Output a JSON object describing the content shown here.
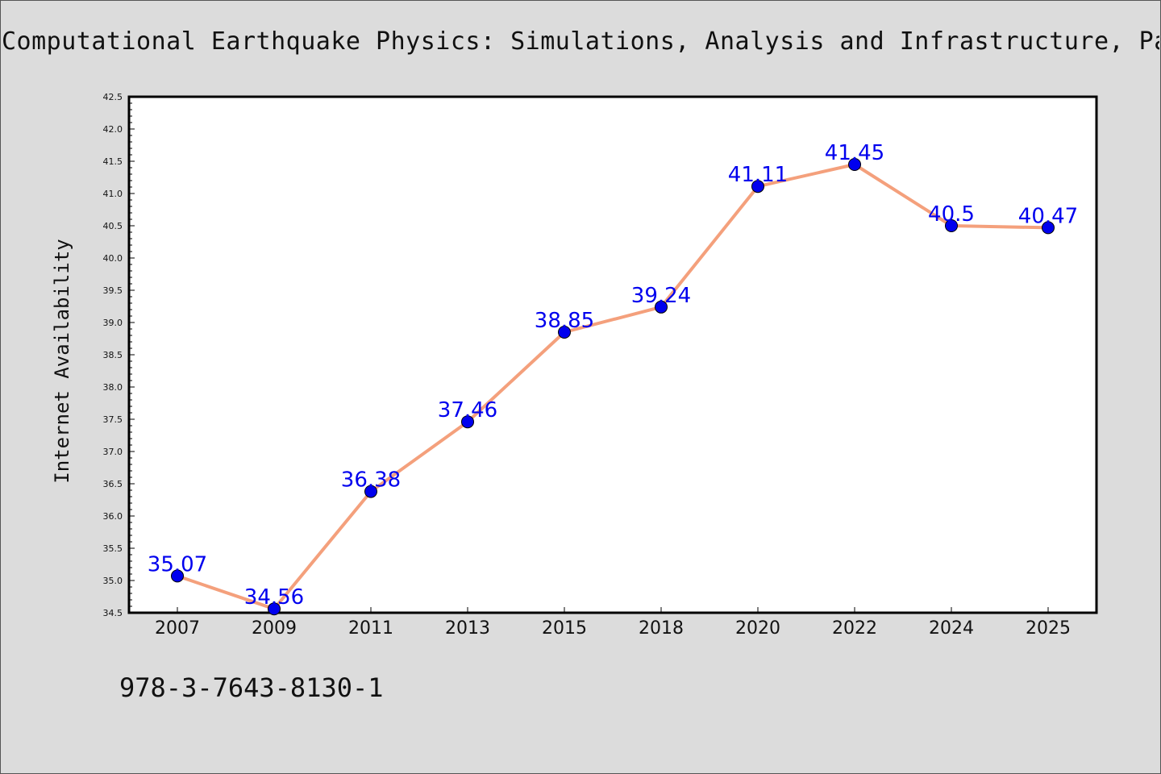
{
  "chart_data": {
    "type": "line",
    "title": "Computational Earthquake Physics: Simulations, Analysis and Infrastructure, Part",
    "xlabel": "",
    "ylabel": "Internet Availability",
    "categories": [
      "2007",
      "2009",
      "2011",
      "2013",
      "2015",
      "2018",
      "2020",
      "2022",
      "2024",
      "2025"
    ],
    "values": [
      35.07,
      34.56,
      36.38,
      37.46,
      38.85,
      39.24,
      41.11,
      41.45,
      40.5,
      40.47
    ],
    "data_labels": [
      "35.07",
      "34.56",
      "36.38",
      "37.46",
      "38.85",
      "39.24",
      "41.11",
      "41.45",
      "40.5",
      "40.47"
    ],
    "ylim": [
      34.5,
      42.5
    ],
    "yticks": [
      "34.5",
      "35.0",
      "35.5",
      "36.0",
      "36.5",
      "37.0",
      "37.5",
      "38.0",
      "38.5",
      "39.0",
      "39.5",
      "40.0",
      "40.5",
      "41.0",
      "41.5",
      "42.0",
      "42.5"
    ],
    "grid": false,
    "legend": "none",
    "colors": {
      "line": "#f4a07c",
      "marker": "#0000ee",
      "label": "#0000ee",
      "background": "#dcdcdc",
      "plot_background": "#ffffff"
    }
  },
  "footer": {
    "isbn": "978-3-7643-8130-1"
  }
}
